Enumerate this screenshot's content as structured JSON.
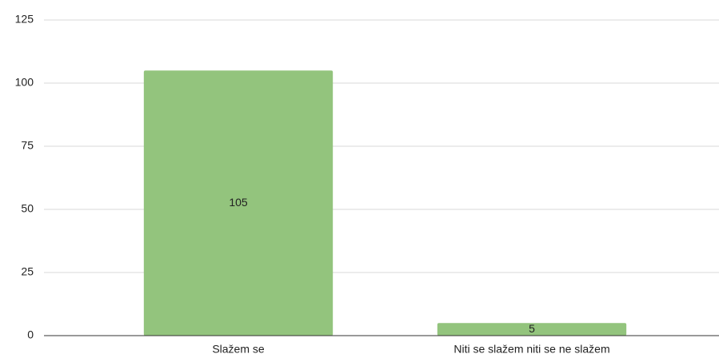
{
  "chart_data": {
    "type": "bar",
    "categories": [
      "Slažem se",
      "Niti se slažem niti se ne slažem"
    ],
    "values": [
      105,
      5
    ],
    "color": "#93c47d",
    "ylim": [
      0,
      125
    ],
    "yticks": [
      0,
      25,
      50,
      75,
      100,
      125
    ],
    "grid": true
  }
}
